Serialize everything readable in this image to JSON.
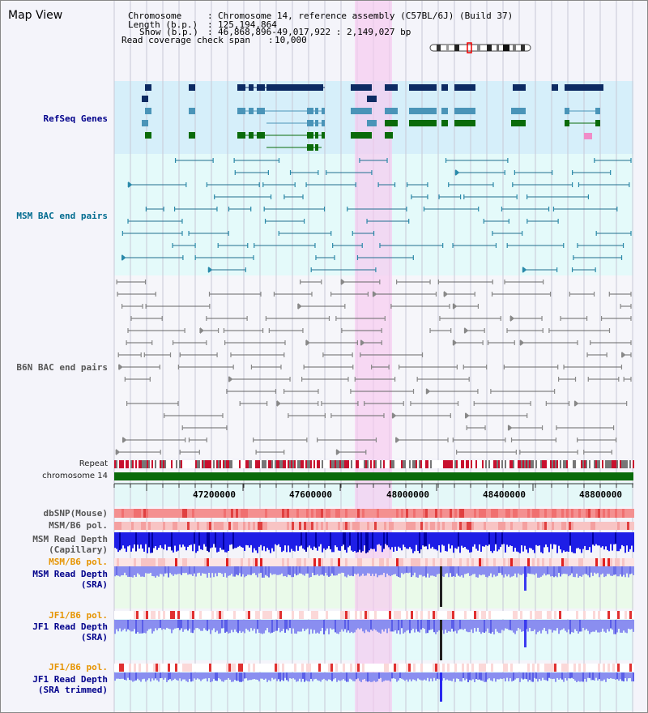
{
  "title": "Map View",
  "info": {
    "chromosome_label": "Chromosome",
    "chromosome_value": "Chromosome 14, reference assembly (C57BL/6J) (Build 37)",
    "length_label": "Length (b.p.)",
    "length_value": "125,194,864",
    "show_label": "Show (b.p.)",
    "show_value": "46,868,896-49,017,922 : 2,149,027 bp",
    "coverage_label": "Read coverage check span",
    "coverage_value": "10,000"
  },
  "tracks": {
    "refseq": "RefSeq Genes",
    "msm_bac": "MSM BAC end pairs",
    "b6n_bac": "B6N BAC end pairs",
    "repeat": "Repeat",
    "chromosome": "chromosome 14",
    "dbsnp": "dbSNP(Mouse)",
    "msm_b6_pol_1": "MSM/B6 pol.",
    "msm_depth_cap_1": "MSM Read Depth",
    "msm_depth_cap_2": "(Capillary)",
    "msm_b6_pol_2": "MSM/B6 pol.",
    "msm_depth_sra_1": "MSM Read Depth",
    "msm_depth_sra_2": "(SRA)",
    "jf1_b6_pol_1": "JF1/B6 pol.",
    "jf1_depth_sra_1": "JF1 Read Depth",
    "jf1_depth_sra_2": "(SRA)",
    "jf1_b6_pol_2": "JF1/B6 pol.",
    "jf1_depth_trim_1": "JF1 Read Depth",
    "jf1_depth_trim_2": "(SRA trimmed)"
  },
  "axis_ticks": [
    "47200000",
    "47600000",
    "48000000",
    "48400000",
    "48800000"
  ],
  "colors": {
    "refseq_label": "#00008b",
    "msm_label": "#006b8f",
    "b6n_label": "#555555",
    "gene_dark": "#0d2b63",
    "gene_mid": "#4a94b8",
    "gene_green": "#0a6b0a",
    "highlight": "#f8d8f0",
    "chromosome_bar": "#0a6b0a",
    "pol_label": "#e69400",
    "depth_label": "#00008b",
    "depth_fill": "#8a8ef0",
    "depth_dark": "#0000ff"
  }
}
